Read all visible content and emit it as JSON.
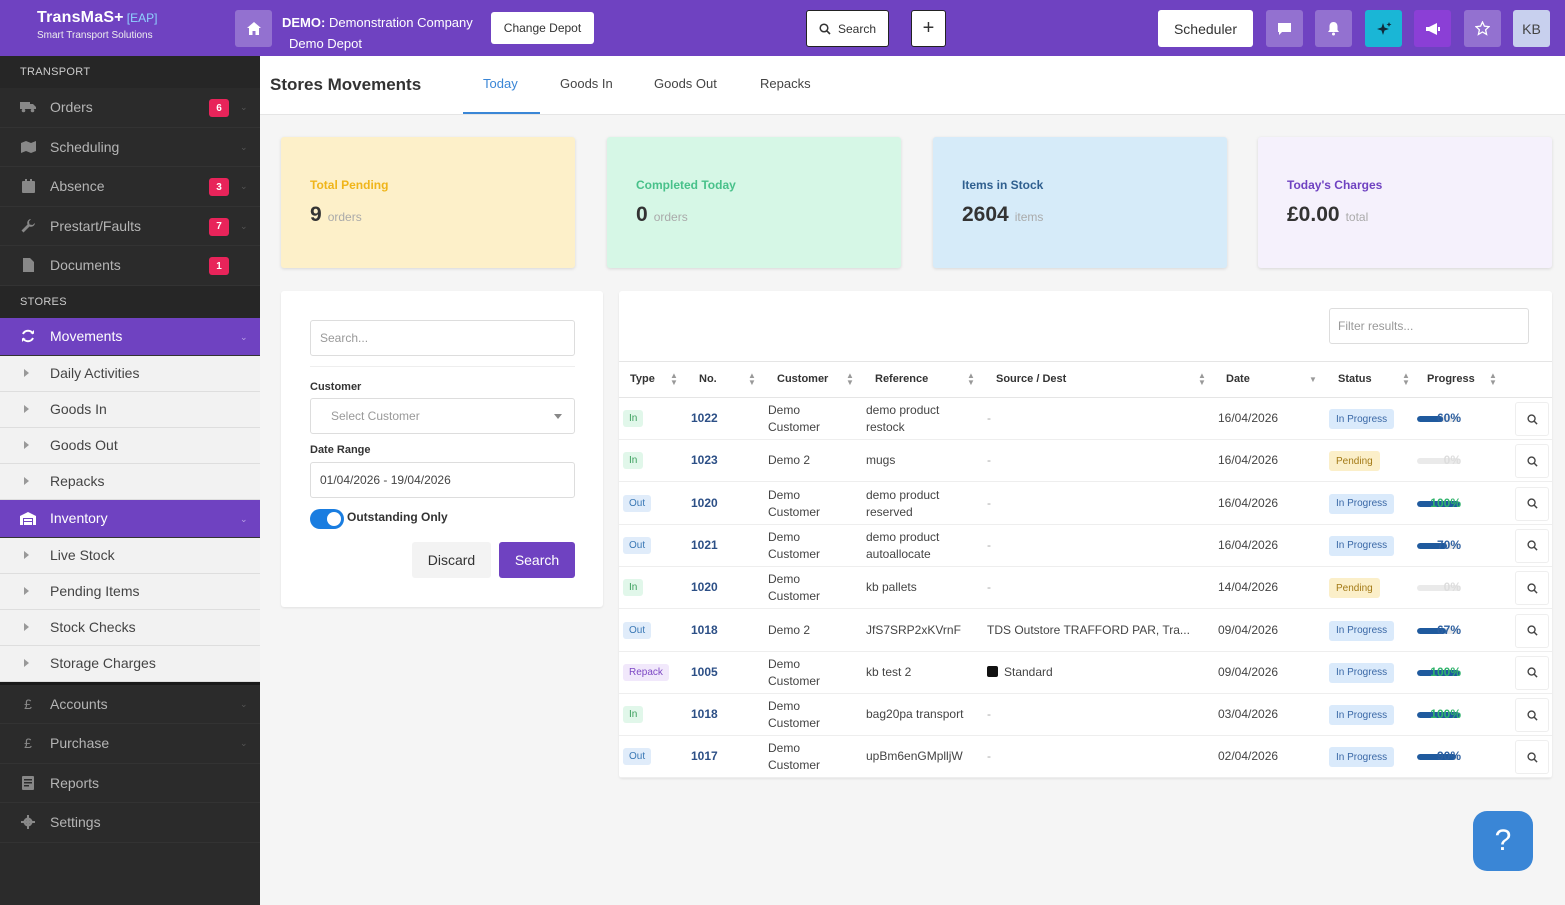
{
  "header": {
    "brand_name": "TransMaS+",
    "brand_badge": "[EAP]",
    "brand_tagline": "Smart Transport Solutions",
    "company_prefix": "DEMO:",
    "company_name": "Demonstration Company",
    "depot_name": "Demo Depot",
    "change_depot_label": "Change Depot",
    "search_label": "Search",
    "plus_label": "+",
    "scheduler_label": "Scheduler",
    "avatar_initials": "KB",
    "accent_color": "#6f42c1"
  },
  "sidebar": {
    "transport_title": "TRANSPORT",
    "transport_items": [
      {
        "label": "Orders",
        "badge": "6",
        "icon": "truck-icon"
      },
      {
        "label": "Scheduling",
        "badge": "",
        "icon": "map-icon"
      },
      {
        "label": "Absence",
        "badge": "3",
        "icon": "calendar-icon"
      },
      {
        "label": "Prestart/Faults",
        "badge": "7",
        "icon": "wrench-icon"
      },
      {
        "label": "Documents",
        "badge": "1",
        "icon": "document-icon"
      }
    ],
    "stores_title": "STORES",
    "movements_label": "Movements",
    "movements_sub": [
      "Daily Activities",
      "Goods In",
      "Goods Out",
      "Repacks"
    ],
    "inventory_label": "Inventory",
    "inventory_sub": [
      "Live Stock",
      "Pending Items",
      "Stock Checks",
      "Storage Charges"
    ],
    "bottom_items": [
      {
        "label": "Accounts",
        "icon": "pound-icon"
      },
      {
        "label": "Purchase",
        "icon": "pound-icon"
      },
      {
        "label": "Reports",
        "icon": "reports-icon"
      },
      {
        "label": "Settings",
        "icon": "gear-icon"
      }
    ]
  },
  "main": {
    "title": "Stores Movements",
    "tabs": [
      "Today",
      "Goods In",
      "Goods Out",
      "Repacks"
    ],
    "active_tab": "Today"
  },
  "stats": [
    {
      "label": "Total Pending",
      "value": "9",
      "unit": "orders",
      "bg": "#fdf0c9",
      "color": "#f0b51a"
    },
    {
      "label": "Completed Today",
      "value": "0",
      "unit": "orders",
      "bg": "#d6f7e6",
      "color": "#48c18a"
    },
    {
      "label": "Items in Stock",
      "value": "2604",
      "unit": "items",
      "bg": "#d6ebf9",
      "color": "#2f5f8f"
    },
    {
      "label": "Today's Charges",
      "value": "£0.00",
      "unit": "total",
      "bg": "#f5f1fc",
      "color": "#6f42c1"
    }
  ],
  "filters": {
    "search_placeholder": "Search...",
    "customer_label": "Customer",
    "customer_placeholder": "Select Customer",
    "date_range_label": "Date Range",
    "date_range_value": "01/04/2026 - 19/04/2026",
    "outstanding_label": "Outstanding Only",
    "outstanding_on": true,
    "discard_label": "Discard",
    "search_label": "Search"
  },
  "table": {
    "filter_placeholder": "Filter results...",
    "columns": [
      "Type",
      "No.",
      "Customer",
      "Reference",
      "Source / Dest",
      "Date",
      "Status",
      "Progress"
    ],
    "rows": [
      {
        "type": "In",
        "no": "1022",
        "customer": [
          "Demo",
          "Customer"
        ],
        "reference": [
          "demo product",
          "restock"
        ],
        "source": "-",
        "date": "16/04/2026",
        "status": "In Progress",
        "progress": 60,
        "pct": "60%"
      },
      {
        "type": "In",
        "no": "1023",
        "customer": [
          "Demo 2"
        ],
        "reference": [
          "mugs"
        ],
        "source": "-",
        "date": "16/04/2026",
        "status": "Pending",
        "progress": 0,
        "pct": "0%"
      },
      {
        "type": "Out",
        "no": "1020",
        "customer": [
          "Demo",
          "Customer"
        ],
        "reference": [
          "demo product",
          "reserved"
        ],
        "source": "-",
        "date": "16/04/2026",
        "status": "In Progress",
        "progress": 100,
        "pct": "100%"
      },
      {
        "type": "Out",
        "no": "1021",
        "customer": [
          "Demo",
          "Customer"
        ],
        "reference": [
          "demo product",
          "autoallocate"
        ],
        "source": "-",
        "date": "16/04/2026",
        "status": "In Progress",
        "progress": 70,
        "pct": "70%"
      },
      {
        "type": "In",
        "no": "1020",
        "customer": [
          "Demo",
          "Customer"
        ],
        "reference": [
          "kb pallets"
        ],
        "source": "-",
        "date": "14/04/2026",
        "status": "Pending",
        "progress": 0,
        "pct": "0%"
      },
      {
        "type": "Out",
        "no": "1018",
        "customer": [
          "Demo 2"
        ],
        "reference": [
          "JfS7SRP2xKVrnF"
        ],
        "source": "TDS Outstore TRAFFORD PAR, Tra...",
        "date": "09/04/2026",
        "status": "In Progress",
        "progress": 67,
        "pct": "67%"
      },
      {
        "type": "Repack",
        "no": "1005",
        "customer": [
          "Demo",
          "Customer"
        ],
        "reference": [
          "kb test 2"
        ],
        "source": "Standard",
        "source_swatch": true,
        "date": "09/04/2026",
        "status": "In Progress",
        "progress": 100,
        "pct": "100%"
      },
      {
        "type": "In",
        "no": "1018",
        "customer": [
          "Demo",
          "Customer"
        ],
        "reference": [
          "bag20pa transport"
        ],
        "source": "-",
        "date": "03/04/2026",
        "status": "In Progress",
        "progress": 100,
        "pct": "100%"
      },
      {
        "type": "Out",
        "no": "1017",
        "customer": [
          "Demo",
          "Customer"
        ],
        "reference": [
          "upBm6enGMplljW"
        ],
        "source": "-",
        "date": "02/04/2026",
        "status": "In Progress",
        "progress": 90,
        "pct": "90%"
      }
    ]
  },
  "help_label": "?"
}
